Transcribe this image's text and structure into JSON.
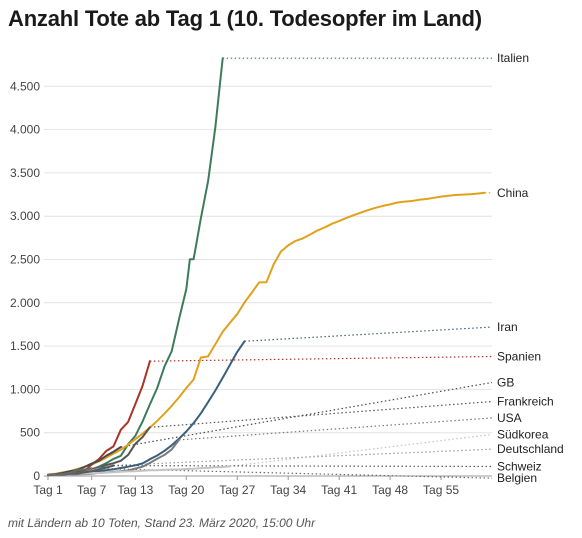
{
  "title": "Anzahl Tote ab Tag 1 (10. Todesopfer im Land)",
  "footnote": "mit Ländern ab 10 Toten, Stand 23. März 2020, 15:00 Uhr",
  "chart_data": {
    "type": "line",
    "title": "Anzahl Tote ab Tag 1 (10. Todesopfer im Land)",
    "xlabel": "",
    "ylabel": "",
    "xlim": [
      1,
      62
    ],
    "ylim": [
      0,
      4850
    ],
    "grid": true,
    "x_ticks": [
      {
        "value": 1,
        "label": "Tag 1"
      },
      {
        "value": 7,
        "label": "Tag 7"
      },
      {
        "value": 13,
        "label": "Tag 13"
      },
      {
        "value": 20,
        "label": "Tag 20"
      },
      {
        "value": 27,
        "label": "Tag 27"
      },
      {
        "value": 34,
        "label": "Tag 34"
      },
      {
        "value": 41,
        "label": "Tag 41"
      },
      {
        "value": 48,
        "label": "Tag 48"
      },
      {
        "value": 55,
        "label": "Tag 55"
      }
    ],
    "y_ticks": [
      {
        "value": 0,
        "label": "0"
      },
      {
        "value": 500,
        "label": "500"
      },
      {
        "value": 1000,
        "label": "1.000"
      },
      {
        "value": 1500,
        "label": "1.500"
      },
      {
        "value": 2000,
        "label": "2.000"
      },
      {
        "value": 2500,
        "label": "2.500"
      },
      {
        "value": 3000,
        "label": "3.000"
      },
      {
        "value": 3500,
        "label": "3.500"
      },
      {
        "value": 4000,
        "label": "4.000"
      },
      {
        "value": 4500,
        "label": "4.500"
      }
    ],
    "label_x": 62,
    "series": [
      {
        "name": "Italien",
        "color": "#3d7a5e",
        "label_y": 4825,
        "points": [
          [
            1,
            12
          ],
          [
            2,
            17
          ],
          [
            3,
            21
          ],
          [
            4,
            29
          ],
          [
            5,
            34
          ],
          [
            6,
            52
          ],
          [
            7,
            79
          ],
          [
            8,
            107
          ],
          [
            9,
            148
          ],
          [
            10,
            197
          ],
          [
            11,
            233
          ],
          [
            12,
            366
          ],
          [
            13,
            463
          ],
          [
            14,
            631
          ],
          [
            15,
            827
          ],
          [
            16,
            1016
          ],
          [
            17,
            1266
          ],
          [
            18,
            1441
          ],
          [
            19,
            1809
          ],
          [
            20,
            2158
          ],
          [
            20.5,
            2503
          ],
          [
            21,
            2503
          ],
          [
            22,
            2978
          ],
          [
            23,
            3405
          ],
          [
            24,
            4032
          ],
          [
            25,
            4825
          ]
        ]
      },
      {
        "name": "China",
        "color": "#e0a11b",
        "label_y": 3270,
        "points": [
          [
            1,
            17
          ],
          [
            2,
            25
          ],
          [
            3,
            41
          ],
          [
            4,
            56
          ],
          [
            5,
            80
          ],
          [
            6,
            106
          ],
          [
            7,
            132
          ],
          [
            8,
            170
          ],
          [
            9,
            213
          ],
          [
            10,
            259
          ],
          [
            11,
            304
          ],
          [
            12,
            361
          ],
          [
            13,
            425
          ],
          [
            14,
            490
          ],
          [
            15,
            560
          ],
          [
            16,
            637
          ],
          [
            17,
            720
          ],
          [
            18,
            810
          ],
          [
            19,
            908
          ],
          [
            20,
            1016
          ],
          [
            21,
            1113
          ],
          [
            22,
            1368
          ],
          [
            23,
            1381
          ],
          [
            24,
            1523
          ],
          [
            25,
            1665
          ],
          [
            26,
            1770
          ],
          [
            27,
            1868
          ],
          [
            28,
            2004
          ],
          [
            29,
            2118
          ],
          [
            30,
            2236
          ],
          [
            31,
            2238
          ],
          [
            32,
            2442
          ],
          [
            33,
            2592
          ],
          [
            34,
            2663
          ],
          [
            35,
            2715
          ],
          [
            36,
            2744
          ],
          [
            37,
            2788
          ],
          [
            38,
            2835
          ],
          [
            39,
            2870
          ],
          [
            40,
            2912
          ],
          [
            41,
            2943
          ],
          [
            42,
            2981
          ],
          [
            43,
            3012
          ],
          [
            44,
            3042
          ],
          [
            45,
            3070
          ],
          [
            46,
            3097
          ],
          [
            47,
            3119
          ],
          [
            48,
            3136
          ],
          [
            49,
            3158
          ],
          [
            50,
            3169
          ],
          [
            51,
            3176
          ],
          [
            52,
            3189
          ],
          [
            53,
            3199
          ],
          [
            54,
            3213
          ],
          [
            55,
            3226
          ],
          [
            56,
            3237
          ],
          [
            57,
            3245
          ],
          [
            58,
            3249
          ],
          [
            59,
            3253
          ],
          [
            60,
            3261
          ],
          [
            61,
            3270
          ]
        ]
      },
      {
        "name": "Iran",
        "color": "#3a5f7d",
        "label_y": 1720,
        "points": [
          [
            1,
            12
          ],
          [
            2,
            15
          ],
          [
            3,
            19
          ],
          [
            4,
            22
          ],
          [
            5,
            26
          ],
          [
            6,
            34
          ],
          [
            7,
            43
          ],
          [
            8,
            54
          ],
          [
            9,
            66
          ],
          [
            10,
            77
          ],
          [
            11,
            92
          ],
          [
            12,
            107
          ],
          [
            13,
            124
          ],
          [
            14,
            145
          ],
          [
            15,
            194
          ],
          [
            16,
            237
          ],
          [
            17,
            291
          ],
          [
            18,
            354
          ],
          [
            19,
            429
          ],
          [
            20,
            514
          ],
          [
            21,
            611
          ],
          [
            22,
            724
          ],
          [
            23,
            853
          ],
          [
            24,
            988
          ],
          [
            25,
            1135
          ],
          [
            26,
            1284
          ],
          [
            27,
            1433
          ],
          [
            28,
            1556
          ]
        ]
      },
      {
        "name": "Spanien",
        "color": "#a8342a",
        "label_y": 1380,
        "points": [
          [
            1,
            10
          ],
          [
            2,
            17
          ],
          [
            3,
            28
          ],
          [
            4,
            35
          ],
          [
            5,
            54
          ],
          [
            6,
            55
          ],
          [
            7,
            133
          ],
          [
            8,
            195
          ],
          [
            9,
            289
          ],
          [
            10,
            342
          ],
          [
            11,
            533
          ],
          [
            12,
            623
          ],
          [
            13,
            830
          ],
          [
            14,
            1043
          ],
          [
            15,
            1326
          ]
        ]
      },
      {
        "name": "GB",
        "color": "#4a4a4a",
        "label_y": 1080,
        "points": [
          [
            1,
            10
          ],
          [
            2,
            21
          ],
          [
            3,
            35
          ],
          [
            4,
            55
          ],
          [
            5,
            71
          ],
          [
            6,
            104
          ],
          [
            7,
            144
          ],
          [
            8,
            177
          ],
          [
            9,
            233
          ],
          [
            10,
            281
          ],
          [
            11,
            335
          ]
        ]
      },
      {
        "name": "Frankreich",
        "color": "#555555",
        "label_y": 860,
        "points": [
          [
            1,
            11
          ],
          [
            2,
            19
          ],
          [
            3,
            19
          ],
          [
            4,
            33
          ],
          [
            5,
            48
          ],
          [
            6,
            48
          ],
          [
            7,
            79
          ],
          [
            8,
            91
          ],
          [
            9,
            127
          ],
          [
            10,
            148
          ],
          [
            11,
            175
          ],
          [
            12,
            244
          ],
          [
            13,
            372
          ],
          [
            14,
            450
          ],
          [
            15,
            562
          ]
        ]
      },
      {
        "name": "USA",
        "color": "#7a7a7a",
        "label_y": 670,
        "points": [
          [
            1,
            11
          ],
          [
            2,
            12
          ],
          [
            3,
            14
          ],
          [
            4,
            17
          ],
          [
            5,
            21
          ],
          [
            6,
            22
          ],
          [
            7,
            28
          ],
          [
            8,
            36
          ],
          [
            9,
            40
          ],
          [
            10,
            47
          ],
          [
            11,
            54
          ],
          [
            12,
            63
          ],
          [
            13,
            85
          ],
          [
            14,
            108
          ],
          [
            15,
            150
          ],
          [
            16,
            200
          ],
          [
            17,
            244
          ],
          [
            18,
            307
          ],
          [
            19,
            417
          ]
        ]
      },
      {
        "name": "Südkorea",
        "color": "#c4c4c4",
        "label_y": 480,
        "points": [
          [
            1,
            12
          ],
          [
            2,
            13
          ],
          [
            3,
            16
          ],
          [
            4,
            17
          ],
          [
            5,
            28
          ],
          [
            6,
            28
          ],
          [
            7,
            35
          ],
          [
            8,
            35
          ],
          [
            9,
            42
          ],
          [
            10,
            44
          ],
          [
            11,
            50
          ],
          [
            12,
            53
          ],
          [
            13,
            54
          ],
          [
            14,
            60
          ],
          [
            15,
            66
          ],
          [
            16,
            66
          ],
          [
            17,
            72
          ],
          [
            18,
            75
          ],
          [
            19,
            75
          ],
          [
            20,
            81
          ],
          [
            21,
            84
          ],
          [
            22,
            91
          ],
          [
            23,
            94
          ],
          [
            24,
            102
          ],
          [
            25,
            104
          ],
          [
            26,
            111
          ]
        ]
      },
      {
        "name": "Deutschland",
        "color": "#9a9a9a",
        "label_y": 310,
        "points": [
          [
            1,
            12
          ],
          [
            2,
            13
          ],
          [
            3,
            17
          ],
          [
            4,
            24
          ],
          [
            5,
            28
          ],
          [
            6,
            44
          ],
          [
            7,
            67
          ],
          [
            8,
            84
          ],
          [
            9,
            94
          ],
          [
            10,
            123
          ]
        ]
      },
      {
        "name": "Schweiz",
        "color": "#5a5a5a",
        "label_y": 110,
        "points": [
          [
            1,
            13
          ],
          [
            2,
            14
          ],
          [
            3,
            14
          ],
          [
            4,
            27
          ],
          [
            5,
            28
          ],
          [
            6,
            41
          ],
          [
            7,
            54
          ],
          [
            8,
            75
          ],
          [
            9,
            98
          ],
          [
            10,
            120
          ]
        ]
      },
      {
        "name": "Belgien",
        "color": "#6a6a6a",
        "label_y": -25,
        "points": [
          [
            1,
            10
          ],
          [
            2,
            14
          ],
          [
            3,
            21
          ],
          [
            4,
            37
          ],
          [
            5,
            67
          ],
          [
            6,
            75
          ],
          [
            7,
            88
          ]
        ]
      }
    ]
  }
}
